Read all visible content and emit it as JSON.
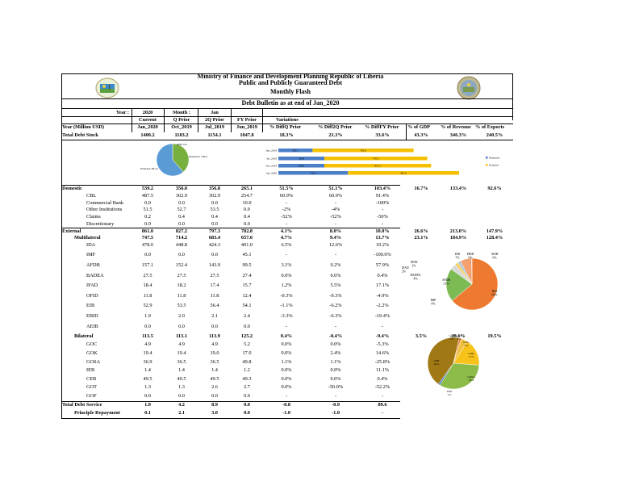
{
  "header": {
    "ministry": "Ministry of Finance and Development Planning Republic of Liberia",
    "subtitle": "Public and Publicly Guaranteed Debt",
    "flash": "Monthly Flash",
    "bulletin": "Debt Bulletin as at end of Jan_2020"
  },
  "period_row": {
    "year_label": "Year :",
    "year_value": "2020",
    "month_label": "Month :",
    "month_value": "Jan"
  },
  "col_headers": {
    "current": "Current",
    "q_prior": "Q Prior",
    "two_q_prior": "2Q Prior",
    "fy_prior": "FY Prior",
    "variations": "Variations"
  },
  "sub_headers": {
    "label": "Year (Million USD)",
    "current": "Jan_2020",
    "q_prior": "Oct_2019",
    "two_q_prior": "Jul_2019",
    "fy_prior": "Jun_2019",
    "diffq": "% DiffQ Prior",
    "diff2q": "% Diff2Q Prior",
    "difffy": "% DiffFY Prior",
    "gdp": "% of GDP",
    "revenue": "% of Revenue",
    "exports": "% of Exports"
  },
  "total_debt_stock": {
    "label": "Total Debt Stock",
    "current": "1400.2",
    "q_prior": "1183.2",
    "two_q_prior": "1154.1",
    "fy_prior": "1047.8",
    "diffq": "18.3%",
    "diff2q": "21.3%",
    "difffy": "33.6%",
    "gdp": "43.3%",
    "revenue": "346.3%",
    "exports": "240.5%"
  },
  "rows": [
    {
      "label": "Domestic",
      "indent": 0,
      "bold": true,
      "v": [
        "539.2",
        "356.0",
        "356.8",
        "265.1"
      ],
      "d": [
        "51.5%",
        "51.1%",
        "103.4%"
      ],
      "r": [
        "16.7%",
        "133.4%",
        "92.6%"
      ]
    },
    {
      "label": "CBL",
      "indent": 2,
      "bold": false,
      "v": [
        "487.5",
        "302.9",
        "302.9",
        "254.7"
      ],
      "d": [
        "60.9%",
        "60.9%",
        "91.4%"
      ],
      "r": [
        "",
        "",
        ""
      ]
    },
    {
      "label": "Commercial Bank",
      "indent": 2,
      "bold": false,
      "v": [
        "0.0",
        "0.0",
        "0.0",
        "10.0"
      ],
      "d": [
        "-",
        "-",
        "-100%"
      ],
      "r": [
        "",
        "",
        ""
      ]
    },
    {
      "label": "Other Institutions",
      "indent": 2,
      "bold": false,
      "v": [
        "51.5",
        "52.7",
        "53.5",
        "0.0"
      ],
      "d": [
        "-2%",
        "-4%",
        "-"
      ],
      "r": [
        "",
        "",
        ""
      ]
    },
    {
      "label": "Claims",
      "indent": 2,
      "bold": false,
      "v": [
        "0.2",
        "0.4",
        "0.4",
        "0.4"
      ],
      "d": [
        "-52%",
        "-52%",
        "-50%"
      ],
      "r": [
        "",
        "",
        ""
      ]
    },
    {
      "label": "Discretionary",
      "indent": 2,
      "bold": false,
      "v": [
        "0.0",
        "0.0",
        "0.0",
        "0.0"
      ],
      "d": [
        "-",
        "-",
        "-"
      ],
      "r": [
        "",
        "",
        ""
      ]
    },
    {
      "label": "External",
      "indent": 0,
      "bold": true,
      "v": [
        "861.0",
        "827.2",
        "797.3",
        "782.8"
      ],
      "d": [
        "4.1%",
        "8.0%",
        "10.0%"
      ],
      "r": [
        "26.6%",
        "213.0%",
        "147.9%"
      ]
    },
    {
      "label": "Multilateral",
      "indent": 1,
      "bold": true,
      "v": [
        "747.5",
        "714.2",
        "683.4",
        "657.6"
      ],
      "d": [
        "4.7%",
        "9.4%",
        "13.7%"
      ],
      "r": [
        "23.1%",
        "184.9%",
        "128.4%"
      ]
    },
    {
      "label": "IDA",
      "indent": 2,
      "bold": false,
      "v": [
        "478.0",
        "448.8",
        "424.3",
        "401.0"
      ],
      "d": [
        "6.5%",
        "12.6%",
        "19.2%"
      ],
      "r": [
        "",
        "",
        ""
      ]
    },
    {
      "label": "IMF",
      "indent": 2,
      "bold": false,
      "v": [
        "0.0",
        "0.0",
        "0.0",
        "45.1"
      ],
      "d": [
        "-",
        "-",
        "-100.0%"
      ],
      "r": [
        "",
        "",
        ""
      ]
    },
    {
      "label": "AFDB",
      "indent": 2,
      "bold": false,
      "v": [
        "157.1",
        "152.4",
        "143.9",
        "99.5"
      ],
      "d": [
        "3.1%",
        "9.2%",
        "57.9%"
      ],
      "r": [
        "",
        "",
        ""
      ]
    },
    {
      "label": "BADEA",
      "indent": 2,
      "bold": false,
      "v": [
        "27.5",
        "27.5",
        "27.5",
        "27.4"
      ],
      "d": [
        "0.0%",
        "0.0%",
        "0.4%"
      ],
      "r": [
        "",
        "",
        ""
      ]
    },
    {
      "label": "IFAD",
      "indent": 2,
      "bold": false,
      "v": [
        "18.4",
        "18.2",
        "17.4",
        "15.7"
      ],
      "d": [
        "1.2%",
        "5.5%",
        "17.1%"
      ],
      "r": [
        "",
        "",
        ""
      ]
    },
    {
      "label": "OFID",
      "indent": 2,
      "bold": false,
      "v": [
        "11.8",
        "11.8",
        "11.8",
        "12.4"
      ],
      "d": [
        "-0.3%",
        "-0.3%",
        "-4.9%"
      ],
      "r": [
        "",
        "",
        ""
      ]
    },
    {
      "label": "EIB",
      "indent": 2,
      "bold": false,
      "v": [
        "52.9",
        "53.5",
        "56.4",
        "54.1"
      ],
      "d": [
        "-1.1%",
        "-6.2%",
        "-2.2%"
      ],
      "r": [
        "",
        "",
        ""
      ]
    },
    {
      "label": "EBID",
      "indent": 2,
      "bold": false,
      "v": [
        "1.9",
        "2.0",
        "2.1",
        "2.4"
      ],
      "d": [
        "-3.3%",
        "-6.3%",
        "-19.4%"
      ],
      "r": [
        "",
        "",
        ""
      ]
    },
    {
      "label": "AEIB",
      "indent": 2,
      "bold": false,
      "v": [
        "0.0",
        "0.0",
        "0.0",
        "0.0"
      ],
      "d": [
        "-",
        "-",
        "-"
      ],
      "r": [
        "",
        "",
        ""
      ]
    },
    {
      "label": "Bilateral",
      "indent": 1,
      "bold": true,
      "v": [
        "113.5",
        "113.1",
        "113.9",
        "125.2"
      ],
      "d": [
        "0.4%",
        "-0.4%",
        "-9.4%"
      ],
      "r": [
        "3.5%",
        "28.1%",
        "19.5%"
      ]
    },
    {
      "label": "GOC",
      "indent": 2,
      "bold": false,
      "v": [
        "4.9",
        "4.9",
        "4.9",
        "5.2"
      ],
      "d": [
        "0.0%",
        "0.0%",
        "-5.3%"
      ],
      "r": [
        "",
        "",
        ""
      ]
    },
    {
      "label": "GOK",
      "indent": 2,
      "bold": false,
      "v": [
        "19.4",
        "19.4",
        "19.0",
        "17.0"
      ],
      "d": [
        "0.0%",
        "2.4%",
        "14.6%"
      ],
      "r": [
        "",
        "",
        ""
      ]
    },
    {
      "label": "GOSA",
      "indent": 2,
      "bold": false,
      "v": [
        "36.9",
        "36.5",
        "36.5",
        "49.8"
      ],
      "d": [
        "1.1%",
        "1.1%",
        "-25.8%"
      ],
      "r": [
        "",
        "",
        ""
      ]
    },
    {
      "label": "IEB",
      "indent": 2,
      "bold": false,
      "v": [
        "1.4",
        "1.4",
        "1.4",
        "1.2"
      ],
      "d": [
        "0.0%",
        "0.0%",
        "11.1%"
      ],
      "r": [
        "",
        "",
        ""
      ]
    },
    {
      "label": "CEB",
      "indent": 2,
      "bold": false,
      "v": [
        "49.5",
        "49.5",
        "49.5",
        "49.3"
      ],
      "d": [
        "0.0%",
        "0.0%",
        "0.4%"
      ],
      "r": [
        "",
        "",
        ""
      ]
    },
    {
      "label": "GOT",
      "indent": 2,
      "bold": false,
      "v": [
        "1.3",
        "1.3",
        "2.6",
        "2.7"
      ],
      "d": [
        "0.0%",
        "-50.0%",
        "-52.2%"
      ],
      "r": [
        "",
        "",
        ""
      ]
    },
    {
      "label": "GOF",
      "indent": 2,
      "bold": false,
      "v": [
        "0.0",
        "0.0",
        "0.0",
        "0.0"
      ],
      "d": [
        "-",
        "-",
        "-"
      ],
      "r": [
        "",
        "",
        ""
      ]
    },
    {
      "label": "Total Debt Service",
      "indent": 0,
      "bold": true,
      "v": [
        "1.0",
        "4.2",
        "8.9",
        "0.0"
      ],
      "d": [
        "-0.8",
        "-0.9",
        "89.6"
      ],
      "r": [
        "",
        "",
        ""
      ]
    },
    {
      "label": "Principle Repayment",
      "indent": 1,
      "bold": true,
      "v": [
        "0.1",
        "2.1",
        "3.0",
        "0.0"
      ],
      "d": [
        "-1.0",
        "-1.0",
        "-"
      ],
      "r": [
        "",
        "",
        ""
      ]
    }
  ],
  "colors": {
    "domestic": "#4a7ec8",
    "external": "#f5c000",
    "multi_ida": "#f07830",
    "bilateral_ceb": "#a07814",
    "gosa": "#8cbb48",
    "gok": "#f7c21a",
    "green": "#78b040"
  },
  "chart_data": [
    {
      "type": "pie",
      "slices": [
        {
          "name": "Domestic",
          "label": "Domestic, 539.2",
          "value": 539.2,
          "color": "#78b040"
        },
        {
          "name": "External",
          "label": "External, 861.0",
          "value": 861.0,
          "color": "#5b9bd5"
        },
        {
          "name": "AEB",
          "label": "AEB, 0.0",
          "value": 0.0,
          "color": "#e0e0e0"
        }
      ]
    },
    {
      "type": "bar",
      "orientation": "horizontal",
      "stacked": true,
      "categories": [
        "Jun_2019",
        "Jul_2019",
        "Oct_2019",
        "Jan_2020"
      ],
      "series": [
        {
          "name": "Domestic",
          "values": [
            265.1,
            356.8,
            356.0,
            539.2
          ],
          "labels": [
            "265.1",
            "356.8",
            "356.0",
            "539.2"
          ],
          "color": "#4a7ec8"
        },
        {
          "name": "External",
          "values": [
            782.8,
            797.3,
            827.2,
            861.0
          ],
          "labels": [
            "782.8",
            "797.3",
            "827.2",
            "861.0"
          ],
          "color": "#f5c000"
        }
      ],
      "legend": "right"
    },
    {
      "type": "pie",
      "slices": [
        {
          "name": "IDA",
          "label": "IDA\n64%",
          "value": 478.0,
          "color": "#ee7a32"
        },
        {
          "name": "IMF",
          "label": "IMF\n0%",
          "value": 0.0,
          "color": "#4a7ec8"
        },
        {
          "name": "AFDB",
          "label": "AFDB\n21%",
          "value": 157.1,
          "color": "#7cba54"
        },
        {
          "name": "BADEA",
          "label": "BADEA\n4%",
          "value": 27.5,
          "color": "#d8d8d8"
        },
        {
          "name": "IFAD",
          "label": "IFAD\n2%",
          "value": 18.4,
          "color": "#f0d070"
        },
        {
          "name": "OFID",
          "label": "OFID\n2%",
          "value": 11.8,
          "color": "#9fbfe0"
        },
        {
          "name": "EIB",
          "label": "EIB\n7%",
          "value": 52.9,
          "color": "#f4a070"
        },
        {
          "name": "EBID",
          "label": "EBID\n0%",
          "value": 1.9,
          "color": "#c0a0c0"
        },
        {
          "name": "AEIB",
          "label": "AEIB\n0%",
          "value": 0.0,
          "color": "#999999"
        }
      ]
    },
    {
      "type": "pie",
      "slices": [
        {
          "name": "GOC",
          "label": "GOC\n4%",
          "value": 4.9,
          "color": "#f0c040"
        },
        {
          "name": "GOK",
          "label": "GOK\n17%",
          "value": 19.4,
          "color": "#f7c21a"
        },
        {
          "name": "GOSA",
          "label": "GOSA\n33%",
          "value": 36.9,
          "color": "#8cbb48"
        },
        {
          "name": "IEB",
          "label": "IEB\n1%",
          "value": 1.4,
          "color": "#4a7ec8"
        },
        {
          "name": "CEB",
          "label": "CEB\n44%",
          "value": 49.5,
          "color": "#a07814"
        },
        {
          "name": "GOT",
          "label": "GOT\n1%",
          "value": 1.3,
          "color": "#f07830"
        },
        {
          "name": "GOF",
          "label": "GOF\n0%",
          "value": 0.0,
          "color": "#bbbbbb"
        }
      ]
    }
  ]
}
